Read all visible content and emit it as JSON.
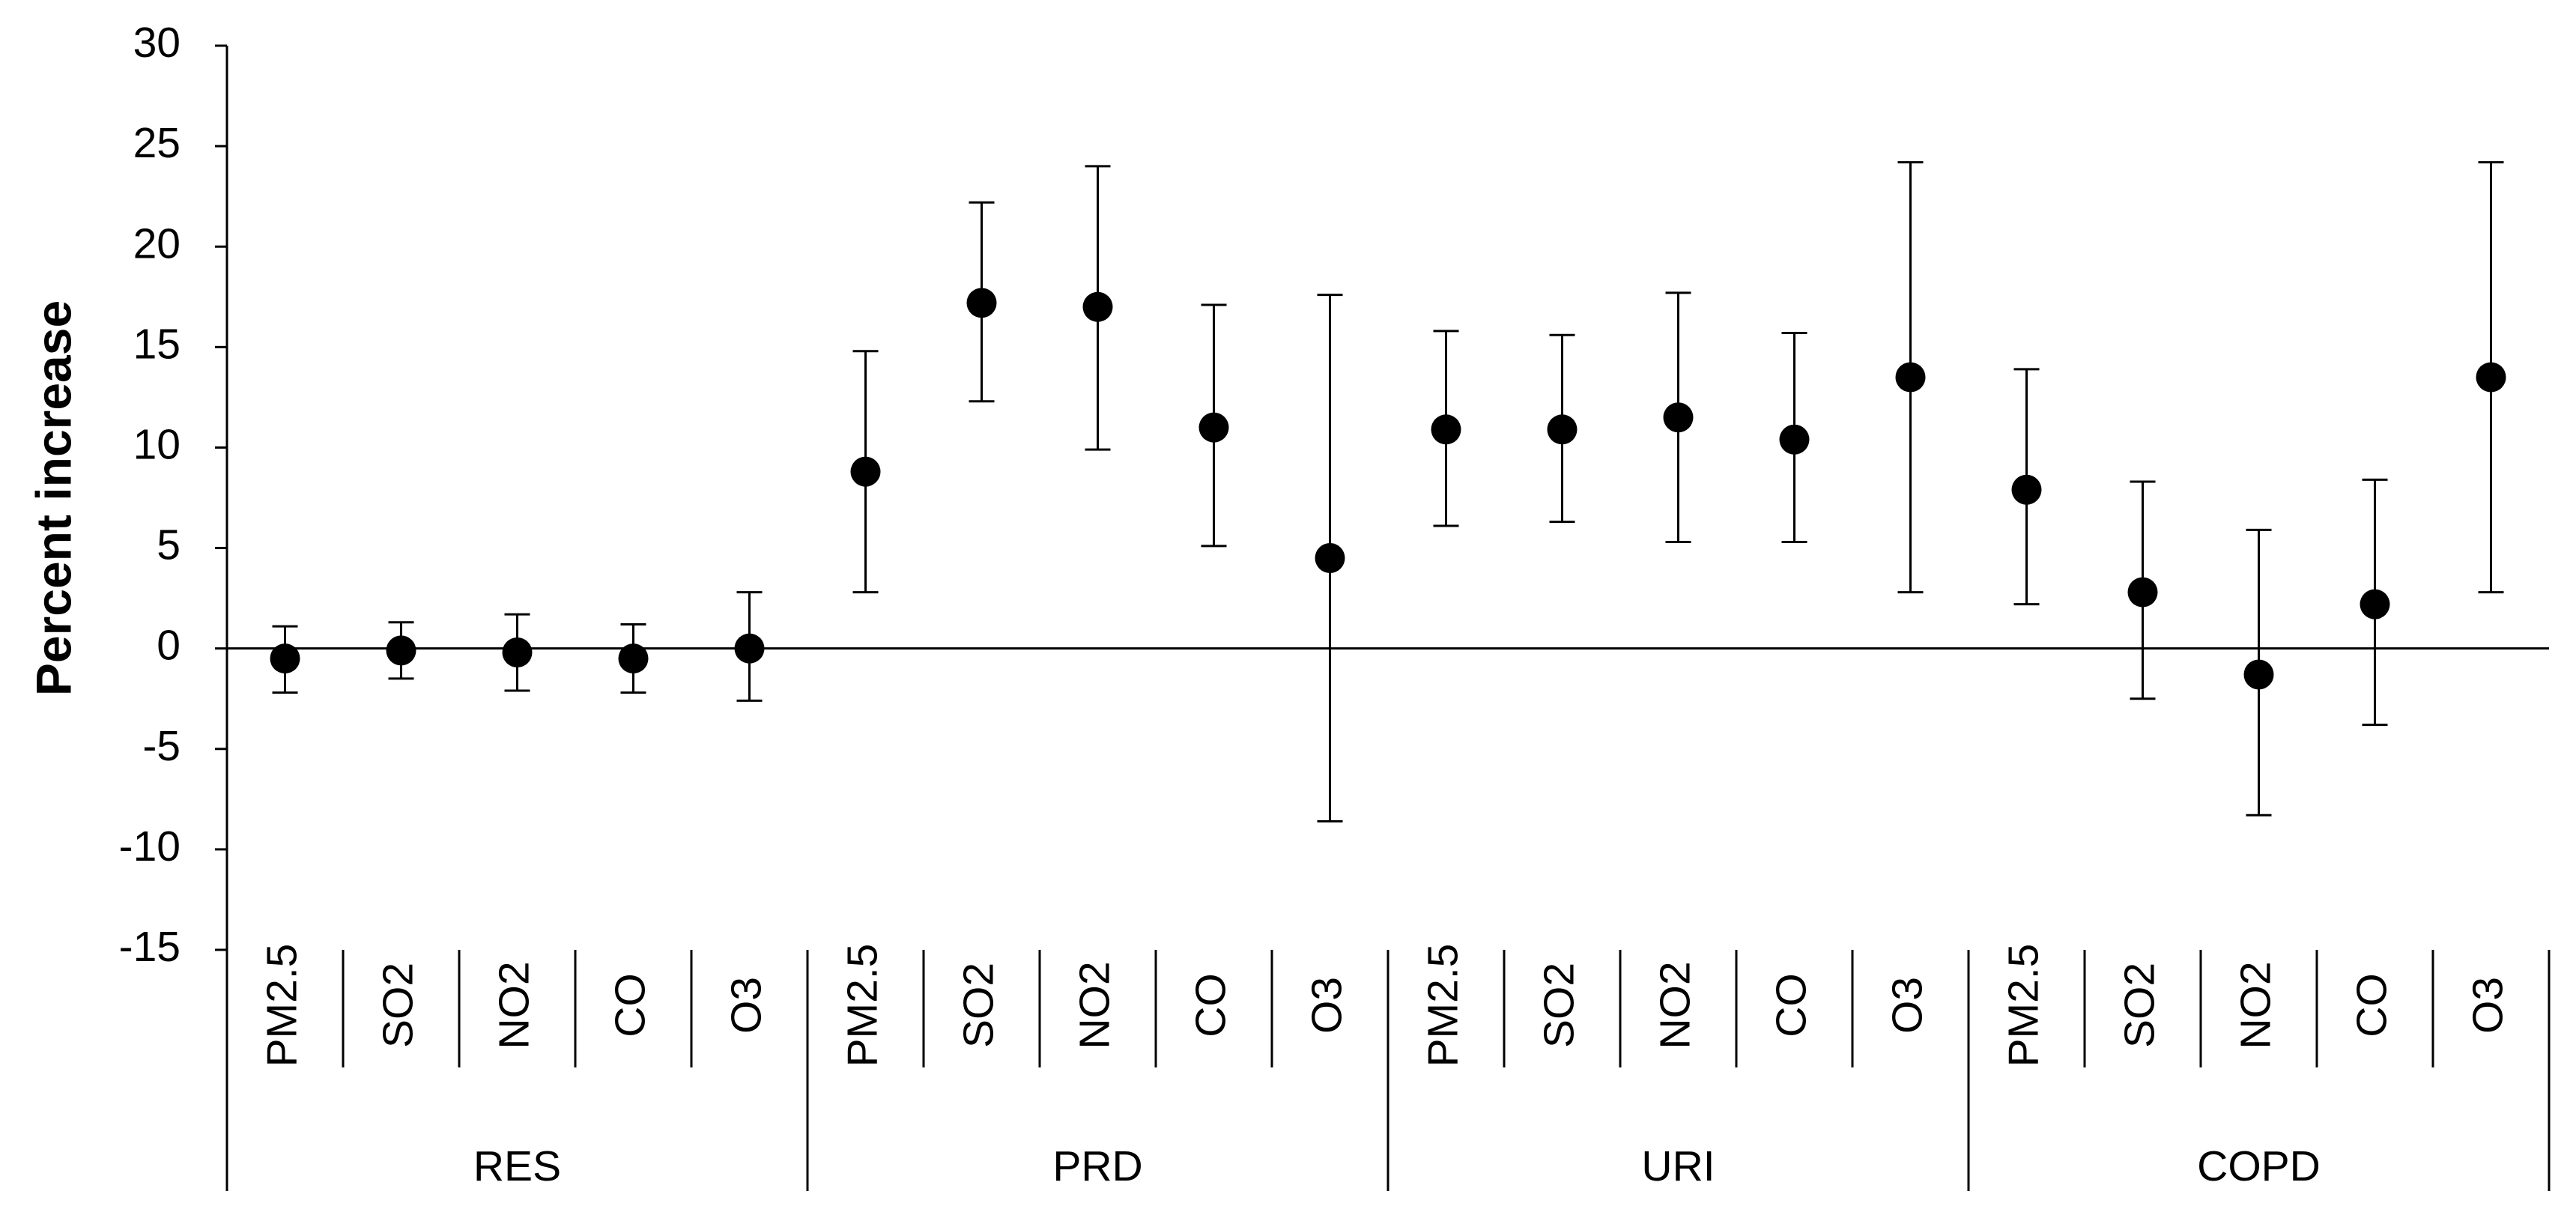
{
  "chart_data": {
    "type": "errorbar",
    "y_label": "Percent increase",
    "ylim": [
      -15,
      30
    ],
    "yticks": [
      -15,
      -10,
      -5,
      0,
      5,
      10,
      15,
      20,
      25,
      30
    ],
    "color": "#000000",
    "groups": [
      {
        "name": "RES",
        "categories": [
          "PM2.5",
          "SO2",
          "NO2",
          "CO",
          "O3"
        ],
        "values": [
          -0.5,
          -0.1,
          -0.2,
          -0.5,
          0
        ],
        "lower": [
          -2.2,
          -1.5,
          -2.1,
          -2.2,
          -2.6
        ],
        "upper": [
          1.1,
          1.3,
          1.7,
          1.2,
          2.8
        ]
      },
      {
        "name": "PRD",
        "categories": [
          "PM2.5",
          "SO2",
          "NO2",
          "CO",
          "O3"
        ],
        "values": [
          8.8,
          17.2,
          17.0,
          11.0,
          4.5
        ],
        "lower": [
          2.8,
          12.3,
          9.9,
          5.1,
          -8.6
        ],
        "upper": [
          14.8,
          22.2,
          24.0,
          17.1,
          17.6
        ]
      },
      {
        "name": "URI",
        "categories": [
          "PM2.5",
          "SO2",
          "NO2",
          "CO",
          "O3"
        ],
        "values": [
          10.9,
          10.9,
          11.5,
          10.4,
          13.5
        ],
        "lower": [
          6.1,
          6.3,
          5.3,
          5.3,
          2.8
        ],
        "upper": [
          15.8,
          15.6,
          17.7,
          15.7,
          24.2
        ]
      },
      {
        "name": "COPD",
        "categories": [
          "PM2.5",
          "SO2",
          "NO2",
          "CO",
          "O3"
        ],
        "values": [
          7.9,
          2.8,
          -1.3,
          2.2,
          13.5
        ],
        "lower": [
          2.2,
          -2.5,
          -8.3,
          -3.8,
          2.8
        ],
        "upper": [
          13.9,
          8.3,
          5.9,
          8.4,
          24.2
        ]
      }
    ]
  }
}
